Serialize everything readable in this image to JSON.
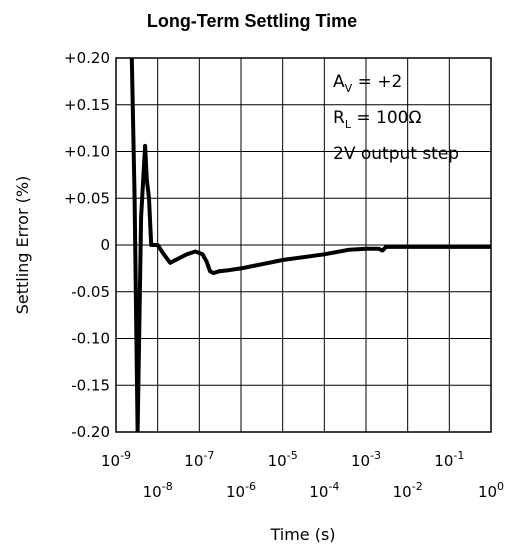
{
  "chart_data": {
    "type": "line",
    "title": "Long-Term Settling Time",
    "xlabel": "Time (s)",
    "ylabel": "Settling Error (%)",
    "x_scale": "log",
    "xlim": [
      1e-09,
      1
    ],
    "ylim": [
      -0.2,
      0.2
    ],
    "grid": true,
    "y_ticks": [
      "+0.20",
      "+0.15",
      "+0.10",
      "+0.05",
      "0",
      "-0.05",
      "-0.10",
      "-0.15",
      "-0.20"
    ],
    "y_tick_values": [
      0.2,
      0.15,
      0.1,
      0.05,
      0,
      -0.05,
      -0.1,
      -0.15,
      -0.2
    ],
    "x_ticks_upper": [
      {
        "base": "10",
        "exp": "-9",
        "value": 1e-09
      },
      {
        "base": "10",
        "exp": "-7",
        "value": 1e-07
      },
      {
        "base": "10",
        "exp": "-5",
        "value": 1e-05
      },
      {
        "base": "10",
        "exp": "-3",
        "value": 0.001
      },
      {
        "base": "10",
        "exp": "-1",
        "value": 0.1
      }
    ],
    "x_ticks_lower": [
      {
        "base": "10",
        "exp": "-8",
        "value": 1e-08
      },
      {
        "base": "10",
        "exp": "-6",
        "value": 1e-06
      },
      {
        "base": "10",
        "exp": "-4",
        "value": 0.0001
      },
      {
        "base": "10",
        "exp": "-2",
        "value": 0.01
      },
      {
        "base": "10",
        "exp": "0",
        "value": 1
      }
    ],
    "annotations": {
      "line1": {
        "main": "A",
        "sub": "V",
        "rest": " = +2"
      },
      "line2": {
        "main": "R",
        "sub": "L",
        "rest": " = 100Ω"
      },
      "line3": "2V output step"
    },
    "series": [
      {
        "color": "#000000",
        "x": [
          2.4e-09,
          2.8e-09,
          3.3e-09,
          4e-09,
          4.5e-09,
          5e-09,
          5.5e-09,
          6.2e-09,
          7e-09,
          1e-08,
          1.4e-08,
          2e-08,
          3e-08,
          5e-08,
          8e-08,
          1.2e-07,
          1.5e-07,
          1.8e-07,
          2.2e-07,
          3e-07,
          5e-07,
          1e-06,
          1e-05,
          0.0001,
          0.0004,
          0.001,
          0.002,
          0.0025,
          0.003,
          0.01,
          0.1,
          1.0
        ],
        "y": [
          0.2,
          0.05,
          -0.2,
          0.03,
          0.07,
          0.106,
          0.07,
          0.05,
          0.0,
          0.0,
          -0.01,
          -0.019,
          -0.015,
          -0.01,
          -0.007,
          -0.01,
          -0.018,
          -0.028,
          -0.03,
          -0.028,
          -0.027,
          -0.025,
          -0.016,
          -0.01,
          -0.005,
          -0.004,
          -0.004,
          -0.006,
          -0.002,
          -0.002,
          -0.002,
          -0.002
        ]
      }
    ]
  }
}
